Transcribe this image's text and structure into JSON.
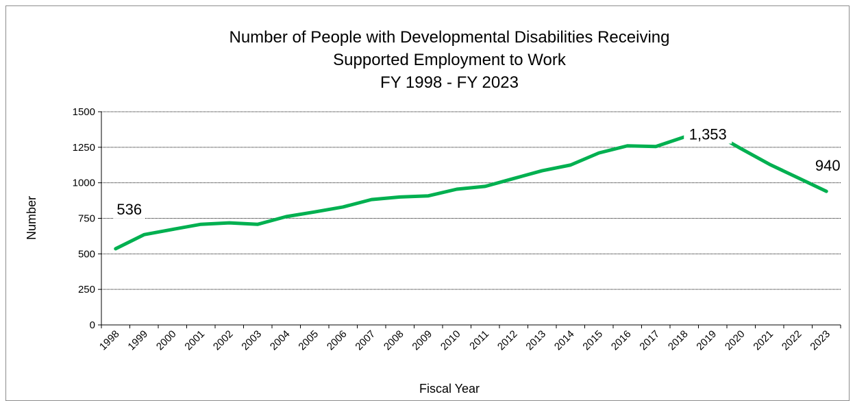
{
  "chart_data": {
    "type": "line",
    "title": [
      "Number of People with Developmental Disabilities Receiving",
      "Supported Employment to Work",
      "FY 1998 - FY 2023"
    ],
    "xlabel": "Fiscal Year",
    "ylabel": "Number",
    "ylim": [
      0,
      1500
    ],
    "yticks": [
      "0",
      "250",
      "500",
      "750",
      "1000",
      "1250",
      "1500"
    ],
    "grid": "horizontal dotted",
    "categories": [
      "1998",
      "1999",
      "2000",
      "2001",
      "2002",
      "2003",
      "2004",
      "2005",
      "2006",
      "2007",
      "2008",
      "2009",
      "2010",
      "2011",
      "2012",
      "2013",
      "2014",
      "2015",
      "2016",
      "2017",
      "2018",
      "2019",
      "2020",
      "2021",
      "2022",
      "2023"
    ],
    "series": [
      {
        "values": [
          536,
          635,
          672,
          708,
          718,
          708,
          762,
          795,
          830,
          882,
          900,
          908,
          955,
          975,
          1030,
          1085,
          1125,
          1210,
          1260,
          1255,
          1322,
          1353,
          1240,
          1130,
          1035,
          940
        ],
        "color": "#00b050"
      }
    ],
    "data_labels": [
      {
        "index": 0,
        "text": "536"
      },
      {
        "index": 21,
        "text": "1,353"
      },
      {
        "index": 25,
        "text": "940"
      }
    ]
  }
}
